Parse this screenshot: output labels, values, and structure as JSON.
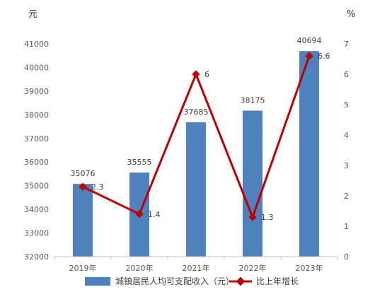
{
  "chart_data": {
    "type": "bar",
    "categories": [
      "2019年",
      "2020年",
      "2021年",
      "2022年",
      "2023年"
    ],
    "series": [
      {
        "name": "城镇居民人均可支配收入（元）",
        "type": "bar",
        "axis": "left",
        "values": [
          35076,
          35555,
          37685,
          38175,
          40694
        ],
        "color": "#4f81bd"
      },
      {
        "name": "比上年增长",
        "type": "line",
        "axis": "right",
        "values": [
          2.3,
          1.4,
          6,
          1.3,
          6.6
        ],
        "color": "#c00000"
      }
    ],
    "y_left": {
      "unit": "元",
      "ylim": [
        32000,
        41000
      ],
      "ticks": [
        "32000",
        "33000",
        "34000",
        "35000",
        "36000",
        "37000",
        "38000",
        "39000",
        "40000",
        "41000"
      ]
    },
    "y_right": {
      "unit": "%",
      "ylim": [
        0,
        7
      ],
      "ticks": [
        "0",
        "1",
        "2",
        "3",
        "4",
        "5",
        "6",
        "7"
      ]
    },
    "bar_labels": [
      "35076",
      "35555",
      "37685",
      "38175",
      "40694"
    ],
    "line_labels": [
      "2.3",
      "1.4",
      "6",
      "1.3",
      "6.6"
    ],
    "grid": false,
    "legend_position": "bottom"
  }
}
